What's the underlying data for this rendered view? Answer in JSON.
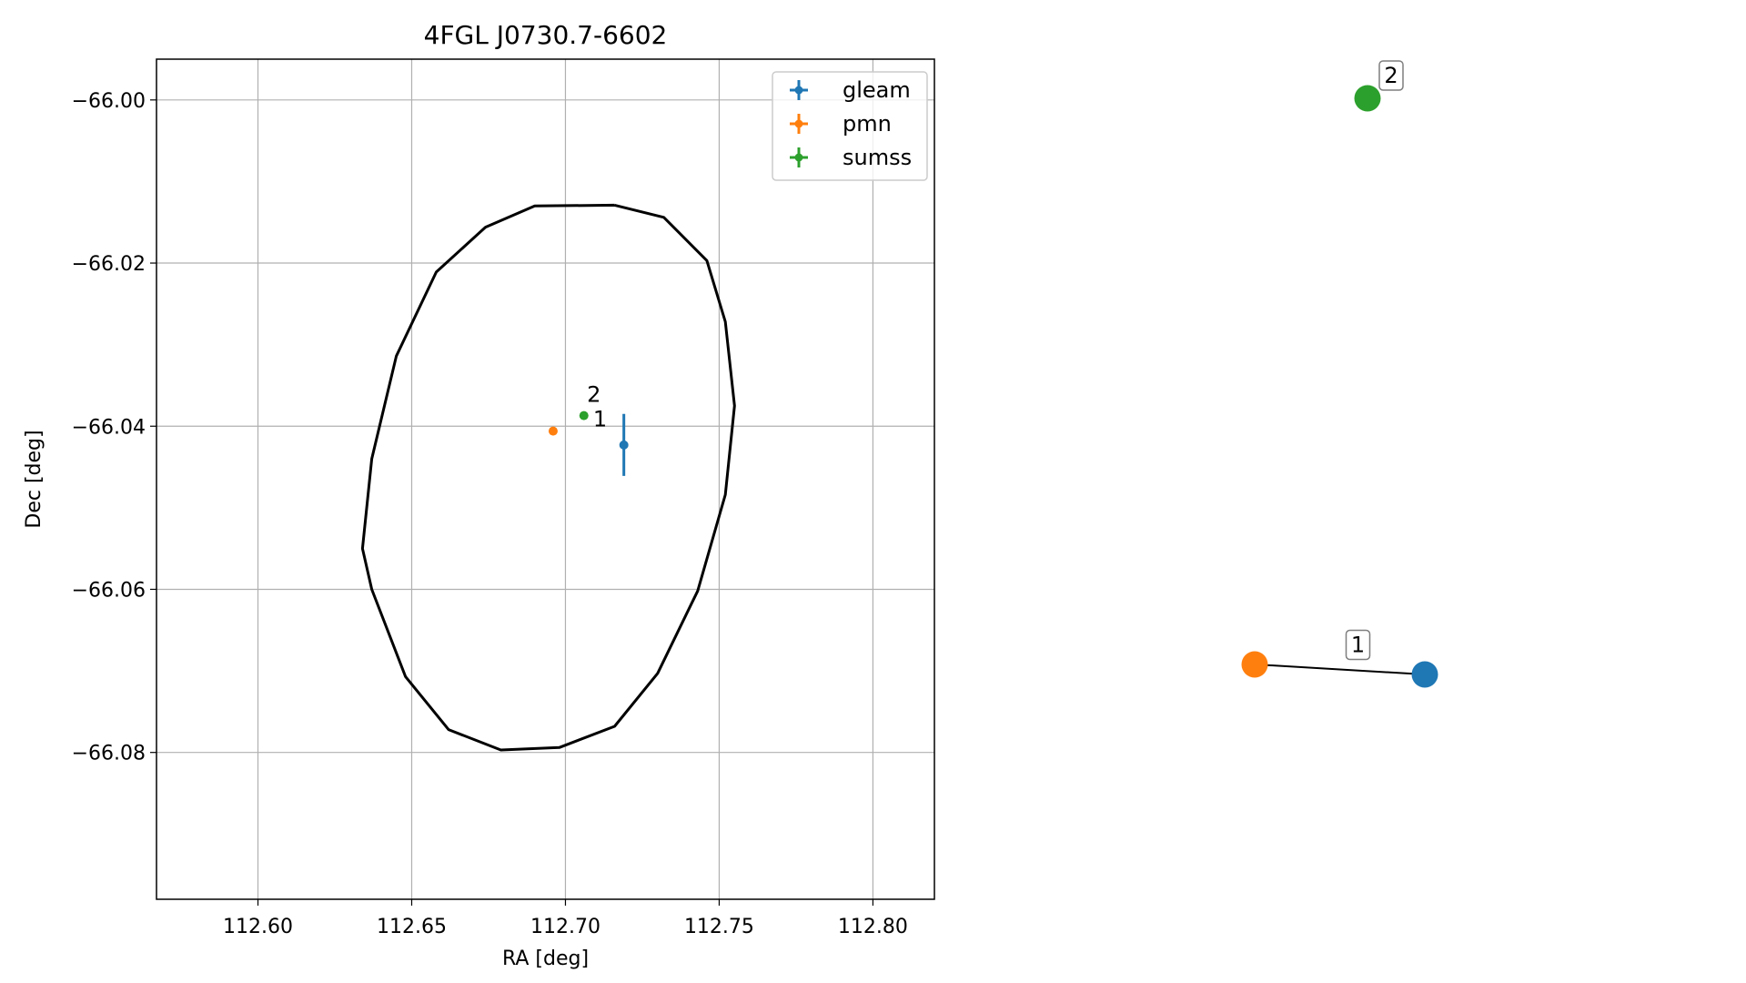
{
  "chart_data": [
    {
      "type": "scatter",
      "title": "4FGL J0730.7-6602",
      "xlabel": "RA [deg]",
      "ylabel": "Dec [deg]",
      "xlim": [
        112.567,
        112.82
      ],
      "ylim": [
        -66.098,
        -65.995
      ],
      "x_ticks": [
        112.6,
        112.65,
        112.7,
        112.75,
        112.8
      ],
      "x_tick_labels": [
        "112.60",
        "112.65",
        "112.70",
        "112.75",
        "112.80"
      ],
      "y_ticks": [
        -66.0,
        -66.02,
        -66.04,
        -66.06,
        -66.08
      ],
      "y_tick_labels": [
        "−66.00",
        "−66.02",
        "−66.04",
        "−66.06",
        "−66.08"
      ],
      "grid": true,
      "legend_position": "top-right",
      "series": [
        {
          "name": "gleam",
          "color": "#1f77b4",
          "points": [
            {
              "x": 112.719,
              "y": -66.0423,
              "xerr": 0.0,
              "yerr": 0.0038
            }
          ]
        },
        {
          "name": "pmn",
          "color": "#ff7f0e",
          "points": [
            {
              "x": 112.696,
              "y": -66.0406,
              "xerr": 0.0,
              "yerr": 0.0
            }
          ]
        },
        {
          "name": "sumss",
          "color": "#2ca02c",
          "points": [
            {
              "x": 112.706,
              "y": -66.0387,
              "xerr": 0.0,
              "yerr": 0.0
            }
          ]
        }
      ],
      "annotations": [
        {
          "text": "2",
          "x": 112.707,
          "y": -66.037
        },
        {
          "text": "1",
          "x": 112.709,
          "y": -66.04
        }
      ],
      "ellipse": {
        "color": "#000000",
        "points": [
          [
            112.716,
            -66.0129
          ],
          [
            112.732,
            -66.0144
          ],
          [
            112.746,
            -66.0197
          ],
          [
            112.752,
            -66.0272
          ],
          [
            112.755,
            -66.0375
          ],
          [
            112.752,
            -66.0484
          ],
          [
            112.743,
            -66.0602
          ],
          [
            112.73,
            -66.0703
          ],
          [
            112.716,
            -66.0768
          ],
          [
            112.698,
            -66.0794
          ],
          [
            112.679,
            -66.0797
          ],
          [
            112.662,
            -66.0772
          ],
          [
            112.648,
            -66.0707
          ],
          [
            112.637,
            -66.06
          ],
          [
            112.634,
            -66.055
          ],
          [
            112.637,
            -66.044
          ],
          [
            112.645,
            -66.0314
          ],
          [
            112.658,
            -66.0211
          ],
          [
            112.674,
            -66.0156
          ],
          [
            112.69,
            -66.013
          ],
          [
            112.716,
            -66.0129
          ]
        ]
      }
    },
    {
      "type": "graph",
      "nodes": [
        {
          "id": "sumss",
          "color": "#2ca02c"
        },
        {
          "id": "pmn",
          "color": "#ff7f0e"
        },
        {
          "id": "gleam",
          "color": "#1f77b4"
        }
      ],
      "edges": [
        {
          "source": "pmn",
          "target": "gleam",
          "label": "1"
        }
      ],
      "labels": [
        {
          "node": "sumss",
          "text": "2"
        }
      ]
    }
  ]
}
